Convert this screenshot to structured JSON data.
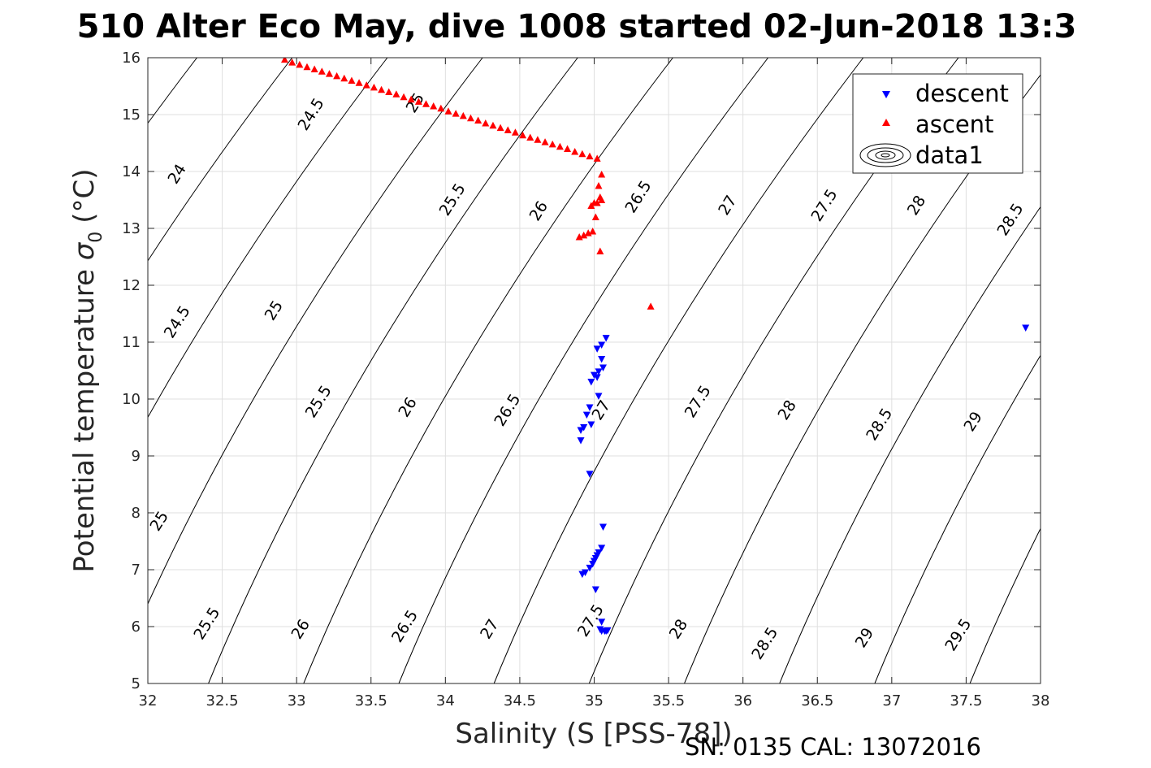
{
  "chart_data": {
    "type": "scatter",
    "title": "510 Alter Eco May, dive 1008 started 02-Jun-2018 13:3",
    "xlabel": "Salinity (S [PSS-78])",
    "ylabel": "Potential temperature σ₀ (°C)",
    "ylabel_main": "Potential temperature ",
    "ylabel_sigma": "σ",
    "ylabel_sub": "0",
    "ylabel_unit": "(°C)",
    "xlim": [
      32,
      38
    ],
    "ylim": [
      5,
      16
    ],
    "xticks": [
      "32",
      "32.5",
      "33",
      "33.5",
      "34",
      "34.5",
      "35",
      "35.5",
      "36",
      "36.5",
      "37",
      "37.5",
      "38"
    ],
    "yticks": [
      "5",
      "6",
      "7",
      "8",
      "9",
      "10",
      "11",
      "12",
      "13",
      "14",
      "15",
      "16"
    ],
    "grid": true,
    "legend_position": "top-right",
    "contours": {
      "name": "data1",
      "levels": [
        "24",
        "24.5",
        "25",
        "25.5",
        "26",
        "26.5",
        "27",
        "27.5",
        "28",
        "28.5",
        "29",
        "29.5"
      ],
      "labels": [
        {
          "text": "24",
          "s": 32.2,
          "t": 13.95
        },
        {
          "text": "24.5",
          "s": 33.1,
          "t": 15.0
        },
        {
          "text": "25",
          "s": 33.8,
          "t": 15.2
        },
        {
          "text": "25.5",
          "s": 34.05,
          "t": 13.5
        },
        {
          "text": "26",
          "s": 34.63,
          "t": 13.3
        },
        {
          "text": "26.5",
          "s": 35.3,
          "t": 13.55
        },
        {
          "text": "27",
          "s": 35.9,
          "t": 13.4
        },
        {
          "text": "27.5",
          "s": 36.55,
          "t": 13.4
        },
        {
          "text": "28",
          "s": 37.17,
          "t": 13.4
        },
        {
          "text": "28.5",
          "s": 37.8,
          "t": 13.15
        },
        {
          "text": "24.5",
          "s": 32.2,
          "t": 11.35
        },
        {
          "text": "25",
          "s": 32.85,
          "t": 11.55
        },
        {
          "text": "25.5",
          "s": 33.15,
          "t": 9.95
        },
        {
          "text": "26",
          "s": 33.75,
          "t": 9.85
        },
        {
          "text": "26.5",
          "s": 34.42,
          "t": 9.8
        },
        {
          "text": "27",
          "s": 35.05,
          "t": 9.8
        },
        {
          "text": "27.5",
          "s": 35.7,
          "t": 9.95
        },
        {
          "text": "28",
          "s": 36.3,
          "t": 9.8
        },
        {
          "text": "28.5",
          "s": 36.92,
          "t": 9.55
        },
        {
          "text": "29",
          "s": 37.55,
          "t": 9.6
        },
        {
          "text": "25",
          "s": 32.08,
          "t": 7.85
        },
        {
          "text": "25.5",
          "s": 32.4,
          "t": 6.05
        },
        {
          "text": "26",
          "s": 33.03,
          "t": 5.95
        },
        {
          "text": "26.5",
          "s": 33.73,
          "t": 6.0
        },
        {
          "text": "27",
          "s": 34.3,
          "t": 5.95
        },
        {
          "text": "27.5",
          "s": 34.98,
          "t": 6.1
        },
        {
          "text": "28",
          "s": 35.57,
          "t": 5.95
        },
        {
          "text": "28.5",
          "s": 36.15,
          "t": 5.7
        },
        {
          "text": "29",
          "s": 36.82,
          "t": 5.8
        },
        {
          "text": "29.5",
          "s": 37.45,
          "t": 5.85
        }
      ]
    },
    "series": [
      {
        "name": "descent",
        "marker": "triangle-down",
        "color": "#0000ff",
        "points": [
          [
            35.08,
            11.07
          ],
          [
            35.05,
            10.95
          ],
          [
            35.02,
            10.88
          ],
          [
            35.05,
            10.7
          ],
          [
            35.06,
            10.55
          ],
          [
            35.03,
            10.48
          ],
          [
            35.0,
            10.42
          ],
          [
            35.02,
            10.38
          ],
          [
            34.98,
            10.3
          ],
          [
            35.03,
            10.05
          ],
          [
            34.97,
            9.85
          ],
          [
            34.95,
            9.72
          ],
          [
            34.98,
            9.55
          ],
          [
            34.93,
            9.5
          ],
          [
            34.91,
            9.45
          ],
          [
            34.91,
            9.27
          ],
          [
            34.97,
            8.68
          ],
          [
            35.06,
            7.75
          ],
          [
            35.05,
            7.38
          ],
          [
            35.03,
            7.3
          ],
          [
            35.02,
            7.25
          ],
          [
            35.01,
            7.2
          ],
          [
            35.0,
            7.15
          ],
          [
            34.99,
            7.1
          ],
          [
            34.97,
            7.03
          ],
          [
            34.94,
            6.95
          ],
          [
            34.92,
            6.92
          ],
          [
            35.01,
            6.65
          ],
          [
            35.05,
            6.08
          ],
          [
            35.04,
            5.95
          ],
          [
            35.05,
            5.92
          ],
          [
            35.07,
            5.92
          ],
          [
            35.08,
            5.92
          ],
          [
            35.09,
            5.93
          ],
          [
            37.9,
            11.25
          ]
        ]
      },
      {
        "name": "ascent",
        "marker": "triangle-up",
        "color": "#ff0000",
        "points": [
          [
            32.92,
            15.97
          ],
          [
            32.97,
            15.92
          ],
          [
            33.02,
            15.88
          ],
          [
            33.07,
            15.84
          ],
          [
            33.12,
            15.8
          ],
          [
            33.17,
            15.76
          ],
          [
            33.22,
            15.72
          ],
          [
            33.27,
            15.68
          ],
          [
            33.32,
            15.64
          ],
          [
            33.37,
            15.6
          ],
          [
            33.42,
            15.56
          ],
          [
            33.47,
            15.52
          ],
          [
            33.52,
            15.48
          ],
          [
            33.57,
            15.44
          ],
          [
            33.62,
            15.4
          ],
          [
            33.67,
            15.36
          ],
          [
            33.72,
            15.31
          ],
          [
            33.77,
            15.27
          ],
          [
            33.82,
            15.23
          ],
          [
            33.87,
            15.19
          ],
          [
            33.92,
            15.15
          ],
          [
            33.97,
            15.11
          ],
          [
            34.02,
            15.06
          ],
          [
            34.07,
            15.02
          ],
          [
            34.12,
            14.98
          ],
          [
            34.17,
            14.94
          ],
          [
            34.22,
            14.9
          ],
          [
            34.27,
            14.85
          ],
          [
            34.32,
            14.81
          ],
          [
            34.37,
            14.77
          ],
          [
            34.42,
            14.73
          ],
          [
            34.47,
            14.69
          ],
          [
            34.52,
            14.64
          ],
          [
            34.57,
            14.6
          ],
          [
            34.62,
            14.56
          ],
          [
            34.67,
            14.52
          ],
          [
            34.72,
            14.48
          ],
          [
            34.77,
            14.44
          ],
          [
            34.82,
            14.4
          ],
          [
            34.87,
            14.35
          ],
          [
            34.92,
            14.31
          ],
          [
            34.97,
            14.27
          ],
          [
            35.02,
            14.23
          ],
          [
            35.05,
            13.95
          ],
          [
            35.03,
            13.75
          ],
          [
            35.04,
            13.55
          ],
          [
            35.05,
            13.5
          ],
          [
            35.02,
            13.45
          ],
          [
            35.0,
            13.45
          ],
          [
            34.98,
            13.4
          ],
          [
            35.01,
            13.2
          ],
          [
            34.99,
            12.95
          ],
          [
            34.96,
            12.92
          ],
          [
            34.93,
            12.88
          ],
          [
            34.9,
            12.85
          ],
          [
            35.04,
            12.6
          ],
          [
            35.38,
            11.63
          ]
        ]
      }
    ],
    "annotation": "SN: 0135  CAL: 13072016"
  }
}
